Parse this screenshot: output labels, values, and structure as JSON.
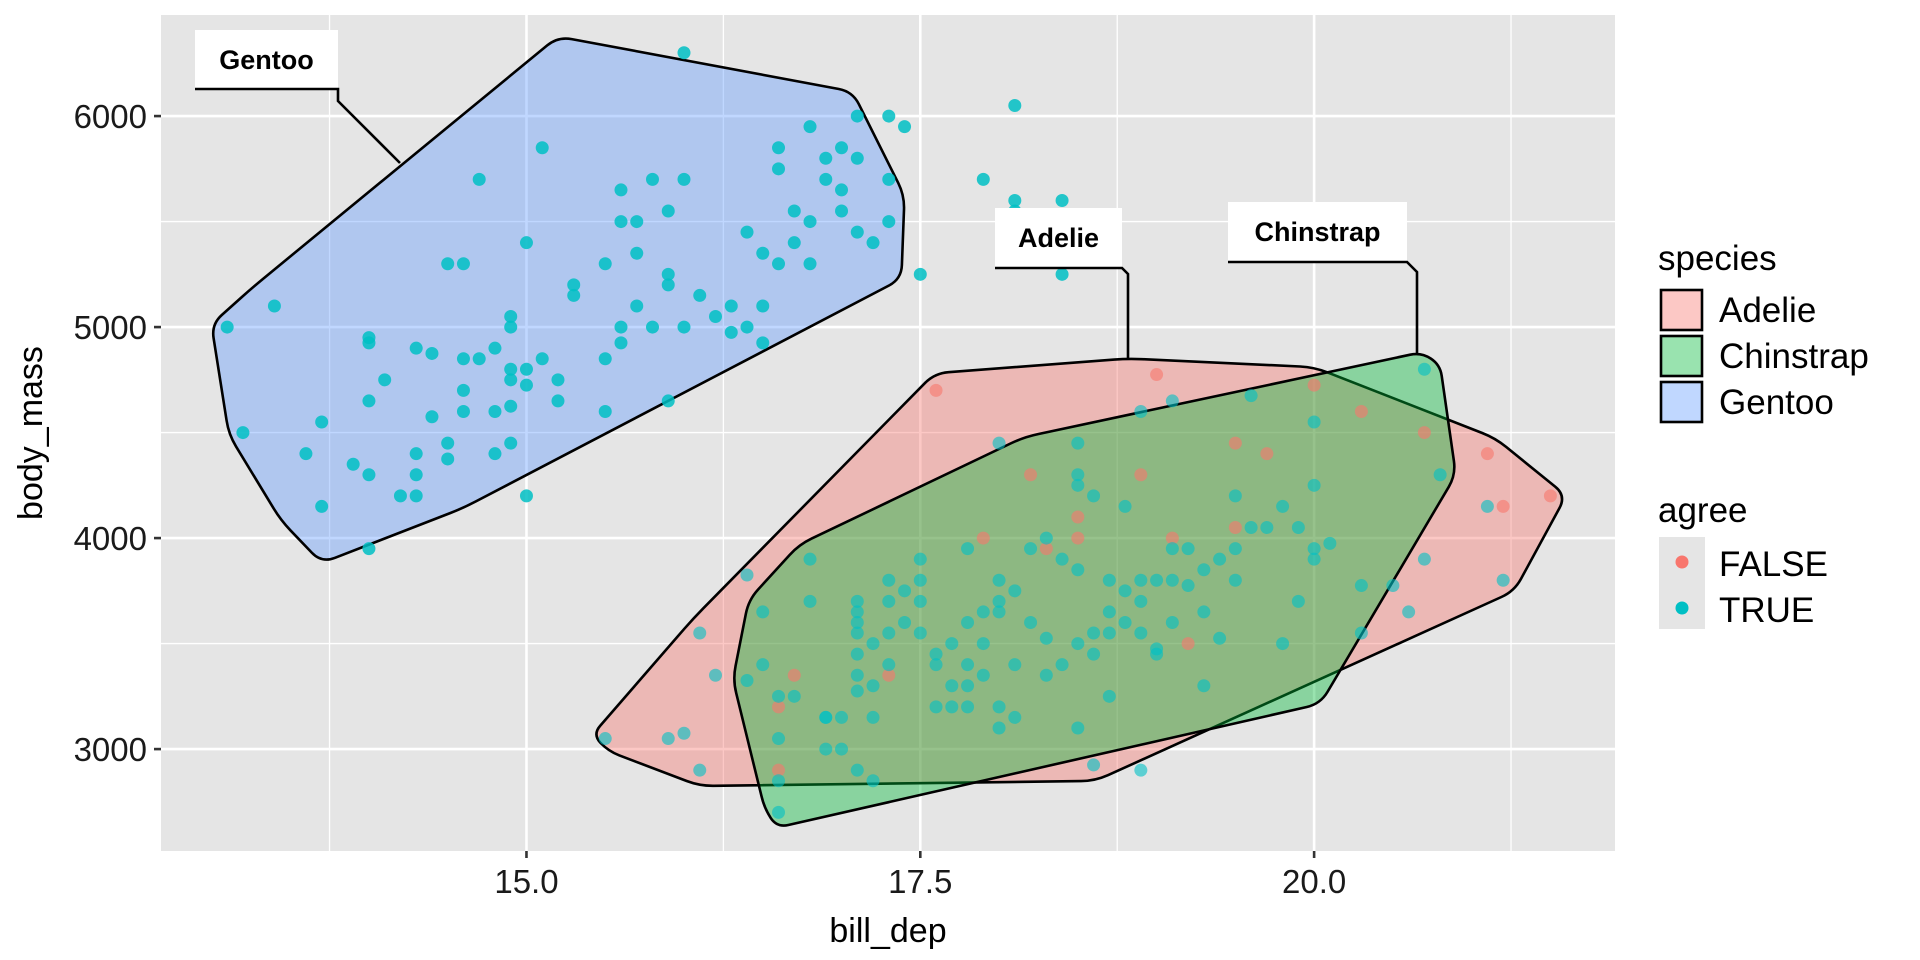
{
  "chart_data": {
    "type": "scatter",
    "title": "",
    "xlabel": "bill_dep",
    "ylabel": "body_mass",
    "xlim": [
      12.68,
      21.91
    ],
    "ylim": [
      2517,
      6479
    ],
    "grid": true,
    "x_ticks": [
      {
        "value": 15.0,
        "label": "15.0"
      },
      {
        "value": 17.5,
        "label": "17.5"
      },
      {
        "value": 20.0,
        "label": "20.0"
      }
    ],
    "x_minor": [
      13.75,
      16.25,
      18.75,
      21.25
    ],
    "y_ticks": [
      {
        "value": 3000,
        "label": "3000"
      },
      {
        "value": 4000,
        "label": "4000"
      },
      {
        "value": 5000,
        "label": "5000"
      },
      {
        "value": 6000,
        "label": "6000"
      }
    ],
    "y_minor": [
      3500,
      4500,
      5500
    ],
    "colors": {
      "panel_bg": "#E5E5E5",
      "grid": "#FFFFFF",
      "Adelie": "#F8766D",
      "Chinstrap": "#00BA38",
      "Gentoo": "#619CFF",
      "FALSE": "#F8766D",
      "TRUE": "#00BFC4"
    },
    "legend": {
      "position": "right",
      "species": {
        "title": "species",
        "entries": [
          "Adelie",
          "Chinstrap",
          "Gentoo"
        ]
      },
      "agree": {
        "title": "agree",
        "entries": [
          "FALSE",
          "TRUE"
        ]
      }
    },
    "hulls": [
      {
        "species": "Gentoo",
        "label": "Gentoo",
        "points": [
          [
            13.0,
            5013
          ],
          [
            13.11,
            4491
          ],
          [
            13.44,
            4085
          ],
          [
            13.7,
            3882
          ],
          [
            14.6,
            4143
          ],
          [
            17.38,
            5228
          ],
          [
            17.4,
            5623
          ],
          [
            17.07,
            6116
          ],
          [
            15.2,
            6377
          ],
          [
            13.26,
            5187
          ]
        ]
      },
      {
        "species": "Adelie",
        "label": "Adelie",
        "points": [
          [
            15.42,
            3069
          ],
          [
            15.52,
            2990
          ],
          [
            16.1,
            2825
          ],
          [
            18.61,
            2849
          ],
          [
            21.27,
            3748
          ],
          [
            21.6,
            4201
          ],
          [
            21.15,
            4474
          ],
          [
            20.0,
            4810
          ],
          [
            18.82,
            4851
          ],
          [
            17.59,
            4781
          ],
          [
            16.06,
            3620
          ]
        ]
      },
      {
        "species": "Chinstrap",
        "label": "Chinstrap",
        "points": [
          [
            16.31,
            3330
          ],
          [
            16.41,
            3707
          ],
          [
            16.73,
            3969
          ],
          [
            18.16,
            4479
          ],
          [
            20.68,
            4880
          ],
          [
            20.8,
            4822
          ],
          [
            20.9,
            4300
          ],
          [
            20.04,
            3214
          ],
          [
            16.59,
            2628
          ],
          [
            16.51,
            2721
          ]
        ]
      }
    ],
    "annotations": [
      {
        "text": "Gentoo",
        "species": "Gentoo"
      },
      {
        "text": "Adelie",
        "species": "Adelie"
      },
      {
        "text": "Chinstrap",
        "species": "Chinstrap"
      }
    ],
    "series": [
      {
        "name": "Gentoo",
        "agree": "TRUE",
        "points": [
          [
            13.1,
            5000
          ],
          [
            13.2,
            4500
          ],
          [
            13.4,
            5100
          ],
          [
            13.6,
            4400
          ],
          [
            13.7,
            4550
          ],
          [
            13.7,
            4150
          ],
          [
            13.9,
            4350
          ],
          [
            14.0,
            4950
          ],
          [
            14.0,
            4925
          ],
          [
            14.0,
            4650
          ],
          [
            14.0,
            4300
          ],
          [
            14.0,
            3950
          ],
          [
            14.1,
            4750
          ],
          [
            14.2,
            4200
          ],
          [
            14.3,
            4900
          ],
          [
            14.3,
            4400
          ],
          [
            14.3,
            4300
          ],
          [
            14.3,
            4200
          ],
          [
            14.4,
            4875
          ],
          [
            14.4,
            4575
          ],
          [
            14.5,
            5300
          ],
          [
            14.5,
            4450
          ],
          [
            14.5,
            4375
          ],
          [
            14.6,
            5300
          ],
          [
            14.6,
            4850
          ],
          [
            14.6,
            4700
          ],
          [
            14.6,
            4600
          ],
          [
            14.7,
            5700
          ],
          [
            14.7,
            4850
          ],
          [
            14.8,
            4900
          ],
          [
            14.8,
            4600
          ],
          [
            14.8,
            4400
          ],
          [
            14.9,
            5050
          ],
          [
            14.9,
            5000
          ],
          [
            14.9,
            4800
          ],
          [
            14.9,
            4750
          ],
          [
            14.9,
            4625
          ],
          [
            14.9,
            4450
          ],
          [
            15.0,
            5400
          ],
          [
            15.0,
            4800
          ],
          [
            15.0,
            4200
          ],
          [
            15.0,
            4725
          ],
          [
            15.1,
            5850
          ],
          [
            15.1,
            4850
          ],
          [
            15.2,
            4650
          ],
          [
            15.2,
            4750
          ],
          [
            15.3,
            5200
          ],
          [
            15.3,
            5150
          ],
          [
            15.5,
            5300
          ],
          [
            15.5,
            4850
          ],
          [
            15.5,
            4600
          ],
          [
            15.6,
            5650
          ],
          [
            15.6,
            5500
          ],
          [
            15.6,
            5000
          ],
          [
            15.6,
            4925
          ],
          [
            15.7,
            5500
          ],
          [
            15.7,
            5350
          ],
          [
            15.7,
            5100
          ],
          [
            15.8,
            5700
          ],
          [
            15.8,
            5000
          ],
          [
            15.9,
            5550
          ],
          [
            15.9,
            5250
          ],
          [
            15.9,
            5200
          ],
          [
            15.9,
            4650
          ],
          [
            16.0,
            6300
          ],
          [
            16.0,
            5700
          ],
          [
            16.0,
            5000
          ],
          [
            16.1,
            5150
          ],
          [
            16.2,
            5050
          ],
          [
            16.3,
            5100
          ],
          [
            16.3,
            4975
          ],
          [
            16.4,
            5450
          ],
          [
            16.4,
            5000
          ],
          [
            16.5,
            5100
          ],
          [
            16.5,
            4925
          ],
          [
            16.5,
            5350
          ],
          [
            16.6,
            5300
          ],
          [
            16.6,
            5850
          ],
          [
            16.6,
            5750
          ],
          [
            16.7,
            5550
          ],
          [
            16.7,
            5400
          ],
          [
            16.8,
            5950
          ],
          [
            16.8,
            5500
          ],
          [
            16.8,
            5300
          ],
          [
            16.9,
            5800
          ],
          [
            16.9,
            5700
          ],
          [
            17.0,
            5850
          ],
          [
            17.0,
            5650
          ],
          [
            17.0,
            5550
          ],
          [
            17.1,
            6000
          ],
          [
            17.1,
            5800
          ],
          [
            17.1,
            5450
          ],
          [
            17.2,
            5400
          ],
          [
            17.3,
            6000
          ],
          [
            17.3,
            5700
          ],
          [
            17.3,
            5500
          ],
          [
            17.4,
            5950
          ],
          [
            17.5,
            5250
          ],
          [
            17.9,
            5700
          ],
          [
            18.1,
            6050
          ],
          [
            18.1,
            5600
          ],
          [
            18.1,
            5550
          ],
          [
            18.2,
            5400
          ],
          [
            18.4,
            5600
          ],
          [
            18.4,
            5250
          ]
        ]
      },
      {
        "name": "Adelie",
        "agree": "TRUE",
        "points": [
          [
            15.5,
            3050
          ],
          [
            15.9,
            3050
          ],
          [
            16.0,
            3075
          ],
          [
            16.1,
            2900
          ],
          [
            16.1,
            3550
          ],
          [
            16.2,
            3350
          ],
          [
            16.4,
            3825
          ],
          [
            18.0,
            4450
          ],
          [
            18.9,
            4600
          ],
          [
            19.1,
            4650
          ],
          [
            20.7,
            3900
          ],
          [
            20.5,
            3775
          ],
          [
            20.6,
            3650
          ],
          [
            21.1,
            4150
          ],
          [
            21.2,
            3800
          ],
          [
            20.3,
            3550
          ],
          [
            18.6,
            2925
          ]
        ]
      },
      {
        "name": "Adelie",
        "agree": "FALSE",
        "points": [
          [
            17.6,
            4700
          ],
          [
            19.0,
            4775
          ],
          [
            21.1,
            4400
          ],
          [
            21.2,
            4150
          ],
          [
            21.5,
            4200
          ],
          [
            20.0,
            4725
          ],
          [
            20.3,
            4600
          ],
          [
            20.7,
            4500
          ],
          [
            19.7,
            4400
          ],
          [
            19.5,
            4450
          ],
          [
            19.5,
            4050
          ],
          [
            18.9,
            4300
          ],
          [
            18.5,
            4100
          ],
          [
            18.5,
            4000
          ],
          [
            18.2,
            4300
          ],
          [
            18.3,
            3950
          ],
          [
            17.9,
            4000
          ],
          [
            19.1,
            4000
          ],
          [
            19.2,
            3500
          ],
          [
            16.7,
            3350
          ],
          [
            16.6,
            3200
          ],
          [
            16.6,
            2900
          ],
          [
            17.3,
            3350
          ]
        ]
      },
      {
        "name": "Chinstrap",
        "agree": "TRUE",
        "points": [
          [
            16.6,
            2700
          ],
          [
            16.5,
            3650
          ],
          [
            16.4,
            3325
          ],
          [
            16.5,
            3400
          ],
          [
            16.6,
            3250
          ],
          [
            16.6,
            3050
          ],
          [
            16.6,
            2850
          ],
          [
            16.7,
            3250
          ],
          [
            16.8,
            3900
          ],
          [
            16.8,
            3700
          ],
          [
            16.9,
            3000
          ],
          [
            16.9,
            3150
          ],
          [
            17.0,
            3000
          ],
          [
            17.0,
            3150
          ],
          [
            17.1,
            3700
          ],
          [
            17.1,
            3650
          ],
          [
            17.1,
            3600
          ],
          [
            17.1,
            3550
          ],
          [
            17.1,
            3450
          ],
          [
            17.1,
            3350
          ],
          [
            17.1,
            3275
          ],
          [
            17.1,
            2900
          ],
          [
            17.2,
            3500
          ],
          [
            17.2,
            3300
          ],
          [
            17.2,
            3150
          ],
          [
            17.2,
            2850
          ],
          [
            17.3,
            3800
          ],
          [
            17.3,
            3700
          ],
          [
            17.3,
            3550
          ],
          [
            17.3,
            3400
          ],
          [
            17.4,
            3750
          ],
          [
            17.4,
            3600
          ],
          [
            17.5,
            3900
          ],
          [
            17.5,
            3800
          ],
          [
            17.5,
            3700
          ],
          [
            17.5,
            3550
          ],
          [
            17.6,
            3450
          ],
          [
            17.6,
            3400
          ],
          [
            17.6,
            3200
          ],
          [
            17.7,
            3500
          ],
          [
            17.7,
            3300
          ],
          [
            17.7,
            3200
          ],
          [
            17.8,
            3950
          ],
          [
            17.8,
            3600
          ],
          [
            17.8,
            3400
          ],
          [
            17.8,
            3300
          ],
          [
            17.8,
            3200
          ],
          [
            17.9,
            3650
          ],
          [
            17.9,
            3500
          ],
          [
            17.9,
            3350
          ],
          [
            18.0,
            3800
          ],
          [
            18.0,
            3700
          ],
          [
            18.0,
            3650
          ],
          [
            18.0,
            3200
          ],
          [
            18.0,
            3100
          ],
          [
            18.1,
            3750
          ],
          [
            18.1,
            3400
          ],
          [
            18.1,
            3150
          ],
          [
            18.2,
            3950
          ],
          [
            18.2,
            3600
          ],
          [
            18.3,
            4000
          ],
          [
            18.3,
            3525
          ],
          [
            18.3,
            3350
          ],
          [
            18.4,
            3900
          ],
          [
            18.4,
            3400
          ],
          [
            18.5,
            4450
          ],
          [
            18.5,
            4300
          ],
          [
            18.5,
            4250
          ],
          [
            18.5,
            3850
          ],
          [
            18.5,
            3500
          ],
          [
            18.5,
            3100
          ],
          [
            18.6,
            4200
          ],
          [
            18.6,
            3550
          ],
          [
            18.6,
            3450
          ],
          [
            18.7,
            3800
          ],
          [
            18.7,
            3650
          ],
          [
            18.7,
            3550
          ],
          [
            18.7,
            3250
          ],
          [
            18.8,
            4150
          ],
          [
            18.8,
            3600
          ],
          [
            18.8,
            3750
          ],
          [
            18.9,
            3800
          ],
          [
            18.9,
            3700
          ],
          [
            18.9,
            3550
          ],
          [
            19.0,
            3800
          ],
          [
            19.0,
            3475
          ],
          [
            19.0,
            3450
          ],
          [
            19.1,
            3950
          ],
          [
            19.1,
            3800
          ],
          [
            19.1,
            3600
          ],
          [
            19.2,
            3950
          ],
          [
            19.2,
            3775
          ],
          [
            19.3,
            3850
          ],
          [
            19.3,
            3650
          ],
          [
            19.3,
            3300
          ],
          [
            19.4,
            3900
          ],
          [
            19.4,
            3525
          ],
          [
            19.5,
            4200
          ],
          [
            19.5,
            3800
          ],
          [
            19.5,
            3950
          ],
          [
            19.6,
            4050
          ],
          [
            19.6,
            4675
          ],
          [
            19.7,
            4050
          ],
          [
            19.8,
            4150
          ],
          [
            19.8,
            3500
          ],
          [
            19.9,
            3700
          ],
          [
            19.9,
            4050
          ],
          [
            20.0,
            4550
          ],
          [
            20.0,
            4250
          ],
          [
            20.0,
            3950
          ],
          [
            20.0,
            3900
          ],
          [
            20.1,
            3975
          ],
          [
            20.3,
            3775
          ],
          [
            20.7,
            4800
          ],
          [
            20.8,
            4300
          ],
          [
            18.9,
            2900
          ],
          [
            16.9,
            3150
          ]
        ]
      }
    ]
  }
}
